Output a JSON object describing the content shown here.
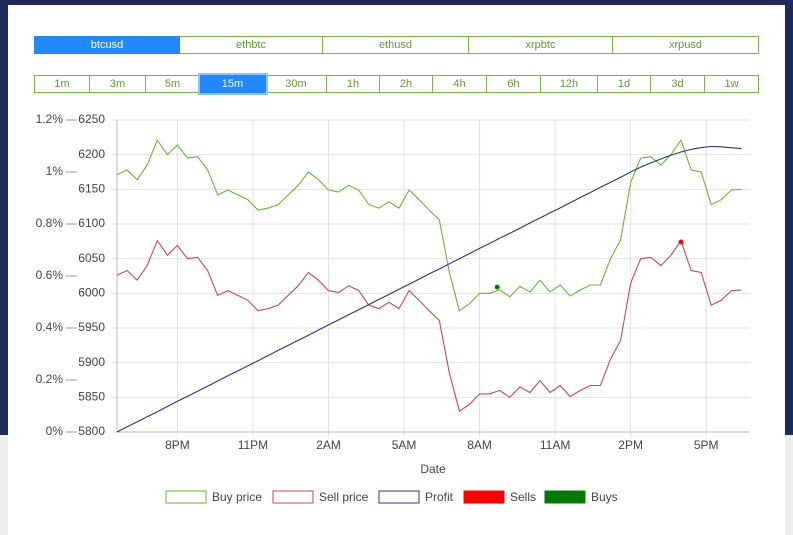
{
  "pairs": {
    "items": [
      "btcusd",
      "ethbtc",
      "ethusd",
      "xrpbtc",
      "xrpusd"
    ],
    "active": 0
  },
  "intervals": {
    "items": [
      "1m",
      "3m",
      "5m",
      "15m",
      "30m",
      "1h",
      "2h",
      "4h",
      "6h",
      "12h",
      "1d",
      "3d",
      "1w"
    ],
    "active": 3
  },
  "chart_data": {
    "type": "line",
    "xlabel": "Date",
    "grid": true,
    "x": [
      -2.4,
      -2,
      -1.6,
      -1.2,
      -0.8,
      -0.4,
      0,
      0.4,
      0.8,
      1.2,
      1.6,
      2,
      2.4,
      2.8,
      3.2,
      3.6,
      4,
      4.4,
      4.8,
      5.2,
      5.6,
      6,
      6.4,
      6.8,
      7.2,
      7.6,
      8,
      8.4,
      8.8,
      9.2,
      9.6,
      10,
      10.4,
      10.8,
      11.2,
      11.6,
      12,
      12.4,
      12.8,
      13.2,
      13.6,
      14,
      14.4,
      14.8,
      15.2,
      15.6,
      16,
      16.4,
      16.8,
      17.2,
      17.6,
      18,
      18.4,
      18.8,
      19.2,
      19.6,
      20,
      20.4,
      20.8,
      21.2,
      21.6,
      22,
      22.4
    ],
    "xlim": [
      -2.4,
      22.74
    ],
    "xticks": [
      {
        "value": 0,
        "label": "8PM"
      },
      {
        "value": 3,
        "label": "11PM"
      },
      {
        "value": 6,
        "label": "2AM"
      },
      {
        "value": 9,
        "label": "5AM"
      },
      {
        "value": 12,
        "label": "8AM"
      },
      {
        "value": 15,
        "label": "11AM"
      },
      {
        "value": 18,
        "label": "2PM"
      },
      {
        "value": 21,
        "label": "5PM"
      }
    ],
    "ylim": [
      0,
      1.2
    ],
    "yticks": [
      {
        "value": 0,
        "label": "0%"
      },
      {
        "value": 0.2,
        "label": "0.2%"
      },
      {
        "value": 0.4,
        "label": "0.4%"
      },
      {
        "value": 0.6,
        "label": "0.6%"
      },
      {
        "value": 0.8,
        "label": "0.8%"
      },
      {
        "value": 1,
        "label": "1%"
      },
      {
        "value": 1.2,
        "label": "1.2%"
      }
    ],
    "y2lim": [
      5800,
      6250
    ],
    "y2ticks": [
      5800,
      5850,
      5900,
      5950,
      6000,
      6050,
      6100,
      6150,
      6200,
      6250
    ],
    "series": [
      {
        "name": "Buy price",
        "type": "line",
        "axis": "y2",
        "color": "#6ab536",
        "values": [
          6171,
          6178,
          6164,
          6185,
          6221,
          6200,
          6214,
          6195,
          6197,
          6178,
          6142,
          6149,
          6142,
          6135,
          6120,
          6123,
          6128,
          6142,
          6156,
          6175,
          6164,
          6149,
          6146,
          6156,
          6149,
          6128,
          6123,
          6132,
          6123,
          6149,
          6135,
          6120,
          6106,
          6030,
          5975,
          5985,
          6000,
          6000,
          6005,
          5995,
          6010,
          6002,
          6019,
          6002,
          6012,
          5996,
          6005,
          6012,
          6012,
          6050,
          6077,
          6160,
          6195,
          6197,
          6185,
          6200,
          6221,
          6178,
          6175,
          6128,
          6135,
          6149,
          6150
        ]
      },
      {
        "name": "Sell price",
        "type": "line",
        "axis": "y2",
        "color": "#c94a4a",
        "values": [
          6026,
          6033,
          6019,
          6040,
          6076,
          6055,
          6069,
          6050,
          6052,
          6033,
          5997,
          6004,
          5997,
          5990,
          5975,
          5978,
          5983,
          5997,
          6011,
          6030,
          6019,
          6004,
          6001,
          6011,
          6004,
          5983,
          5978,
          5987,
          5978,
          6004,
          5990,
          5975,
          5961,
          5885,
          5830,
          5840,
          5855,
          5855,
          5860,
          5850,
          5865,
          5857,
          5874,
          5857,
          5867,
          5851,
          5860,
          5867,
          5867,
          5905,
          5932,
          6015,
          6050,
          6052,
          6040,
          6055,
          6076,
          6033,
          6030,
          5983,
          5990,
          6004,
          6005
        ]
      },
      {
        "name": "Profit",
        "type": "line",
        "axis": "y",
        "color": "#2a3580",
        "values": [
          0,
          0.02,
          0.039,
          0.059,
          0.078,
          0.098,
          0.118,
          0.137,
          0.157,
          0.176,
          0.196,
          0.216,
          0.235,
          0.255,
          0.274,
          0.294,
          0.314,
          0.333,
          0.353,
          0.372,
          0.392,
          0.412,
          0.431,
          0.451,
          0.47,
          0.49,
          0.51,
          0.529,
          0.549,
          0.568,
          0.588,
          0.608,
          0.627,
          0.647,
          0.666,
          0.686,
          0.706,
          0.725,
          0.745,
          0.764,
          0.784,
          0.804,
          0.823,
          0.843,
          0.862,
          0.882,
          0.902,
          0.921,
          0.941,
          0.96,
          0.98,
          1.0,
          1.019,
          1.035,
          1.05,
          1.065,
          1.077,
          1.087,
          1.094,
          1.098,
          1.097,
          1.093,
          1.09
        ]
      },
      {
        "name": "Sells",
        "type": "scatter",
        "axis": "y2",
        "color": "#ff0000",
        "x": [
          20
        ],
        "values": [
          6074
        ]
      },
      {
        "name": "Buys",
        "type": "scatter",
        "axis": "y2",
        "color": "#007a00",
        "x": [
          12.7
        ],
        "values": [
          6009
        ]
      }
    ]
  }
}
